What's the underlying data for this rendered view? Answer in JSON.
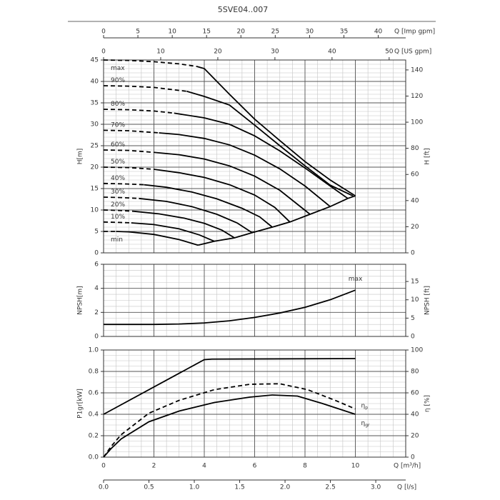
{
  "chart_data": [
    {
      "type": "line",
      "title": "5SVE04..007",
      "ylabel": "H[m]",
      "y2label": "H [ft]",
      "xlim": [
        0,
        12
      ],
      "xticks": [
        0,
        2,
        4,
        6,
        8,
        10
      ],
      "x_minor_step": 0.5,
      "ylim": [
        0,
        45
      ],
      "yticks": [
        0,
        5,
        10,
        15,
        20,
        25,
        30,
        35,
        40,
        45
      ],
      "y_minor_step": 1,
      "y2lim": [
        0,
        147.6
      ],
      "y2ticks": [
        0,
        20,
        40,
        60,
        80,
        100,
        120,
        140
      ],
      "grid": true,
      "color": "#000000",
      "top_axes": [
        {
          "label": "Q [Imp gpm]",
          "xlim": [
            0,
            44
          ],
          "xticks": [
            0,
            5,
            10,
            15,
            20,
            25,
            30,
            35,
            40
          ]
        },
        {
          "label": "Q [US gpm]",
          "xlim": [
            0,
            52.9
          ],
          "xticks": [
            0,
            10,
            20,
            30,
            40,
            50
          ]
        }
      ],
      "series": [
        {
          "name": "max",
          "line_style": "dashed",
          "x": [
            0,
            1,
            2,
            3,
            3.7
          ],
          "values": [
            45,
            44.9,
            44.6,
            44.1,
            43.5
          ]
        },
        {
          "line_style": "solid",
          "x": [
            3.7,
            4,
            4.5,
            5,
            6,
            7,
            8,
            9,
            10
          ],
          "values": [
            43.5,
            43,
            40,
            37,
            31.2,
            26.2,
            21.3,
            17,
            13.3
          ]
        },
        {
          "name": "90%",
          "line_style": "dashed",
          "x": [
            0,
            1,
            2,
            3.3
          ],
          "values": [
            39,
            38.9,
            38.6,
            37.7
          ]
        },
        {
          "line_style": "solid",
          "x": [
            3.3,
            4,
            5,
            6,
            7,
            8,
            9,
            9.9
          ],
          "values": [
            37.7,
            36.5,
            34.5,
            29.8,
            25,
            20.3,
            15.8,
            13.3
          ]
        },
        {
          "name": "80%",
          "line_style": "dashed",
          "x": [
            0,
            1,
            2,
            2.8
          ],
          "values": [
            33.5,
            33.4,
            33.1,
            32.6
          ]
        },
        {
          "line_style": "solid",
          "x": [
            2.8,
            4,
            5,
            6,
            7,
            8,
            9,
            9.7
          ],
          "values": [
            32.6,
            31.5,
            30,
            27.3,
            23.8,
            19.8,
            15.6,
            12.7
          ]
        },
        {
          "name": "70%",
          "line_style": "dashed",
          "x": [
            0,
            1,
            2.2
          ],
          "values": [
            28.6,
            28.5,
            28
          ]
        },
        {
          "line_style": "solid",
          "x": [
            2.2,
            3,
            4,
            5,
            6,
            7,
            8,
            9
          ],
          "values": [
            28,
            27.6,
            26.7,
            25.2,
            22.8,
            19.6,
            15.6,
            10.8
          ]
        },
        {
          "name": "60%",
          "line_style": "dashed",
          "x": [
            0,
            1,
            2.1
          ],
          "values": [
            24,
            23.9,
            23.4
          ]
        },
        {
          "line_style": "solid",
          "x": [
            2.1,
            3,
            4,
            5,
            6,
            7,
            8.2
          ],
          "values": [
            23.4,
            22.9,
            21.9,
            20.3,
            17.9,
            14.6,
            9
          ]
        },
        {
          "name": "50%",
          "line_style": "dashed",
          "x": [
            0,
            1,
            2
          ],
          "values": [
            20,
            19.9,
            19.5
          ]
        },
        {
          "line_style": "solid",
          "x": [
            2,
            3,
            4,
            5,
            6,
            6.8,
            7.4
          ],
          "values": [
            19.5,
            18.7,
            17.6,
            15.9,
            13.5,
            10.6,
            7.2
          ]
        },
        {
          "name": "40%",
          "line_style": "dashed",
          "x": [
            0,
            0.8,
            1.6
          ],
          "values": [
            16.2,
            16.1,
            15.9
          ]
        },
        {
          "line_style": "solid",
          "x": [
            1.6,
            2.5,
            3.5,
            4.5,
            5.5,
            6.2,
            6.7
          ],
          "values": [
            15.9,
            15.3,
            14.2,
            12.6,
            10.4,
            8.4,
            6
          ]
        },
        {
          "name": "30%",
          "line_style": "dashed",
          "x": [
            0,
            0.7,
            1.4
          ],
          "values": [
            13,
            12.9,
            12.7
          ]
        },
        {
          "line_style": "solid",
          "x": [
            1.4,
            2.5,
            3.5,
            4.5,
            5.3,
            5.9
          ],
          "values": [
            12.7,
            12,
            10.8,
            9,
            7,
            4.7
          ]
        },
        {
          "name": "20%",
          "line_style": "dashed",
          "x": [
            0,
            0.6,
            1.2
          ],
          "values": [
            10,
            9.9,
            9.7
          ]
        },
        {
          "line_style": "solid",
          "x": [
            1.2,
            2.2,
            3.2,
            4,
            4.7,
            5.2
          ],
          "values": [
            9.7,
            9.1,
            8.1,
            6.9,
            5.3,
            3.5
          ]
        },
        {
          "name": "10%",
          "line_style": "dashed",
          "x": [
            0,
            0.6,
            1.1
          ],
          "values": [
            7.2,
            7.1,
            7
          ]
        },
        {
          "line_style": "solid",
          "x": [
            1.1,
            2,
            3,
            3.8,
            4.4
          ],
          "values": [
            7,
            6.6,
            5.6,
            4.2,
            2.7
          ]
        },
        {
          "name": "min",
          "line_style": "dashed",
          "x": [
            0,
            0.5
          ],
          "values": [
            5,
            5
          ]
        },
        {
          "line_style": "solid",
          "x": [
            0.5,
            1,
            2,
            3,
            3.75
          ],
          "values": [
            5,
            4.9,
            4.3,
            3.1,
            1.8
          ]
        },
        {
          "line_style": "solid",
          "x": [
            3.75,
            4.4,
            5.2,
            5.9,
            6.7,
            7.4,
            8.2,
            9,
            9.7,
            10
          ],
          "values": [
            1.8,
            2.7,
            3.5,
            4.7,
            6,
            7.2,
            9,
            10.8,
            12.7,
            13.3
          ]
        }
      ]
    },
    {
      "type": "line",
      "ylabel": "NPSH[m]",
      "y2label": "NPSH [ft]",
      "xlim": [
        0,
        12
      ],
      "xticks": [
        0,
        2,
        4,
        6,
        8,
        10
      ],
      "x_minor_step": 0.5,
      "ylim": [
        0,
        6
      ],
      "yticks": [
        0,
        2,
        4,
        6
      ],
      "y_minor_step": 0.5,
      "y2lim": [
        0,
        19.7
      ],
      "y2ticks": [
        0,
        5,
        10,
        15
      ],
      "grid": true,
      "color": "#000000",
      "series": [
        {
          "name": "max",
          "line_style": "solid",
          "x": [
            0,
            1,
            2,
            3,
            4,
            5,
            6,
            7,
            8,
            9,
            10
          ],
          "values": [
            1,
            1,
            1,
            1.03,
            1.12,
            1.3,
            1.58,
            1.95,
            2.42,
            3.05,
            3.85
          ]
        }
      ]
    },
    {
      "type": "line",
      "ylabel": "P1gr[kW]",
      "y2label": "η [%]",
      "xlabel": "Q [m³/h]",
      "xlim": [
        0,
        12
      ],
      "xticks": [
        0,
        2,
        4,
        6,
        8,
        10
      ],
      "x_minor_step": 0.5,
      "ylim": [
        0,
        1
      ],
      "yticks": [
        {
          "value": 0,
          "label": "0.0"
        },
        0.2,
        0.4,
        0.6,
        0.8,
        {
          "value": 1,
          "label": "1.0"
        }
      ],
      "y_minor_step": 0.05,
      "y2lim": [
        0,
        100
      ],
      "y2ticks": [
        0,
        20,
        40,
        60,
        80,
        100
      ],
      "grid": true,
      "color": "#000000",
      "bottom_axis": {
        "label": "Q [l/s]",
        "xlim": [
          0,
          3.33
        ],
        "xticks": [
          {
            "value": 0,
            "label": "0.0"
          },
          0.5,
          {
            "value": 1,
            "label": "1.0"
          },
          1.5,
          {
            "value": 2,
            "label": "2.0"
          },
          2.5,
          {
            "value": 3,
            "label": "3.0"
          }
        ]
      },
      "series": [
        {
          "line_style": "solid",
          "axis": "y",
          "x": [
            0,
            4,
            4.3,
            10
          ],
          "values": [
            0.4,
            0.91,
            0.915,
            0.92
          ]
        },
        {
          "name": "η",
          "name_sub": "p",
          "line_style": "dashed",
          "axis": "y2",
          "x": [
            0,
            0.3,
            0.7,
            1.8,
            3,
            4.4,
            5.8,
            7,
            8.1,
            9.2,
            10
          ],
          "values": [
            0,
            10,
            21,
            41,
            53,
            63,
            68,
            68.5,
            63,
            53,
            45
          ]
        },
        {
          "name": "η",
          "name_sub": "gr",
          "line_style": "solid",
          "axis": "y2",
          "x": [
            0,
            0.3,
            0.7,
            1.8,
            3,
            4.4,
            5.8,
            6.7,
            7.7,
            8.7,
            10
          ],
          "values": [
            0,
            8,
            17,
            33,
            43,
            51,
            56,
            58,
            57,
            50,
            40
          ]
        }
      ]
    }
  ]
}
